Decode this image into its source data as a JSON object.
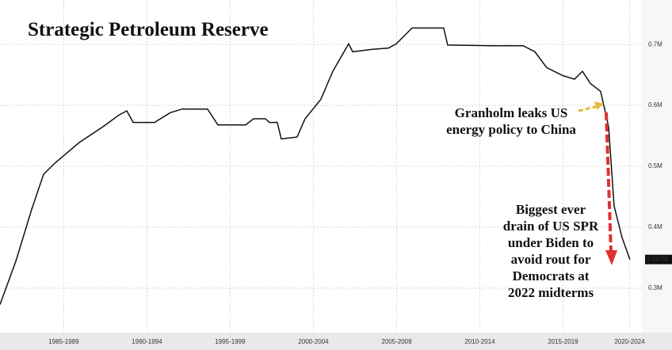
{
  "chart_data": {
    "type": "line",
    "title": "Strategic Petroleum Reserve",
    "x": [
      1983.67,
      1984.62,
      1985.57,
      1986.29,
      1987.0,
      1988.43,
      1989.86,
      1990.81,
      1991.29,
      1991.67,
      1992.95,
      1993.9,
      1994.62,
      1996.14,
      1996.76,
      1998.43,
      1998.9,
      1999.62,
      1999.86,
      2000.33,
      2000.57,
      2001.52,
      2002.0,
      2002.95,
      2003.67,
      2004.62,
      2004.86,
      2006.05,
      2007.0,
      2007.48,
      2008.43,
      2010.33,
      2010.57,
      2013.19,
      2015.1,
      2015.81,
      2016.52,
      2017.48,
      2018.19,
      2018.67,
      2019.14,
      2019.76,
      2020.24,
      2020.57,
      2021.05,
      2021.52
    ],
    "series": [
      {
        "name": "SPR",
        "color": "#111111",
        "values": [
          0.273,
          0.344,
          0.429,
          0.487,
          0.506,
          0.539,
          0.565,
          0.584,
          0.591,
          0.572,
          0.572,
          0.588,
          0.594,
          0.594,
          0.568,
          0.568,
          0.578,
          0.578,
          0.572,
          0.572,
          0.545,
          0.548,
          0.578,
          0.61,
          0.656,
          0.701,
          0.688,
          0.692,
          0.694,
          0.701,
          0.727,
          0.727,
          0.699,
          0.698,
          0.698,
          0.688,
          0.662,
          0.649,
          0.643,
          0.656,
          0.636,
          0.623,
          0.565,
          0.435,
          0.383,
          0.347
        ],
        "value_labels": [
          null,
          null,
          null,
          null,
          null,
          null,
          null,
          null,
          null,
          null,
          null,
          null,
          null,
          null,
          null,
          null,
          null,
          null,
          null,
          null,
          null,
          null,
          null,
          null,
          null,
          null,
          null,
          null,
          null,
          null,
          null,
          null,
          null,
          null,
          null,
          null,
          null,
          null,
          null,
          null,
          null,
          null,
          null,
          null,
          null,
          "0.347M"
        ]
      }
    ],
    "xlim": [
      1983.67,
      2022.24
    ],
    "xticks": [
      {
        "value": 1987.5,
        "label": "1985-1989"
      },
      {
        "value": 1992.5,
        "label": "1990-1994"
      },
      {
        "value": 1997.5,
        "label": "1995-1999"
      },
      {
        "value": 2002.5,
        "label": "2000-2004"
      },
      {
        "value": 2007.5,
        "label": "2005-2009"
      },
      {
        "value": 2012.5,
        "label": "2010-2014"
      },
      {
        "value": 2017.5,
        "label": "2015-2019"
      },
      {
        "value": 2021.5,
        "label": "2020-2024"
      }
    ],
    "ylim": [
      0.227,
      0.773
    ],
    "yticks": [
      {
        "value": 0.3,
        "label": "0.3M"
      },
      {
        "value": 0.4,
        "label": "0.4M"
      },
      {
        "value": 0.5,
        "label": "0.5M"
      },
      {
        "value": 0.6,
        "label": "0.6M"
      },
      {
        "value": 0.7,
        "label": "0.7M"
      }
    ],
    "grid": true,
    "annotations": [
      {
        "lines": [
          "Granholm leaks US",
          "energy policy to China"
        ]
      },
      {
        "lines": [
          "Biggest ever",
          "drain of US SPR",
          "under Biden to",
          "avoid rout for",
          "Democrats at",
          "2022 midterms"
        ]
      }
    ]
  }
}
